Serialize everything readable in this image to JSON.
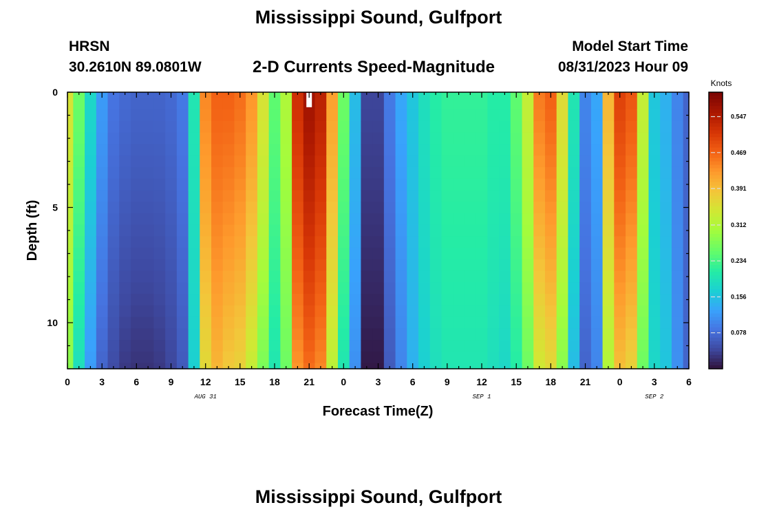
{
  "header": {
    "title": "Mississippi Sound, Gulfport",
    "station_id": "HRSN",
    "station_coords": "30.2610N  89.0801W",
    "subtitle": "2-D Currents Speed-Magnitude",
    "model_label": "Model Start Time",
    "model_time": "08/31/2023 Hour 09"
  },
  "footer": {
    "title": "Mississippi Sound, Gulfport"
  },
  "chart_data": {
    "type": "heatmap",
    "xlabel": "Forecast Time(Z)",
    "ylabel": "Depth (ft)",
    "colorbar_label": "Knots",
    "colorbar_ticks": [
      "0.547",
      "0.469",
      "0.391",
      "0.312",
      "0.234",
      "0.156",
      "0.078"
    ],
    "colorbar_tick_values": [
      0.547,
      0.469,
      0.391,
      0.312,
      0.234,
      0.156,
      0.078
    ],
    "vrange": [
      0,
      0.6
    ],
    "xlim": [
      0,
      54
    ],
    "ylim": [
      0,
      12
    ],
    "y_inverted": true,
    "x_tick_values": [
      0,
      3,
      6,
      9,
      12,
      15,
      18,
      21,
      24,
      27,
      30,
      33,
      36,
      39,
      42,
      45,
      48,
      51,
      54
    ],
    "x_tick_labels": [
      "0",
      "3",
      "6",
      "9",
      "12",
      "15",
      "18",
      "21",
      "0",
      "3",
      "6",
      "9",
      "12",
      "15",
      "18",
      "21",
      "0",
      "3",
      "6"
    ],
    "y_tick_values": [
      0,
      5,
      10
    ],
    "y_tick_labels": [
      "0",
      "5",
      "10"
    ],
    "date_labels": [
      {
        "text": "AUG 31",
        "x": 12
      },
      {
        "text": "SEP 1",
        "x": 36
      },
      {
        "text": "SEP 2",
        "x": 51
      }
    ],
    "hours": [
      0,
      1,
      2,
      3,
      4,
      5,
      6,
      7,
      8,
      9,
      10,
      11,
      12,
      13,
      14,
      15,
      16,
      17,
      18,
      19,
      20,
      21,
      22,
      23,
      24,
      25,
      26,
      27,
      28,
      29,
      30,
      31,
      32,
      33,
      34,
      35,
      36,
      37,
      38,
      39,
      40,
      41,
      42,
      43,
      44,
      45,
      46,
      47,
      48,
      49,
      50,
      51,
      52,
      53,
      54
    ],
    "depths": [
      0,
      0.5,
      1,
      1.5,
      2,
      2.5,
      3,
      3.5,
      4,
      4.5,
      5,
      5.5,
      6,
      6.5,
      7,
      7.5,
      8,
      8.5,
      9,
      9.5,
      10,
      10.5,
      11,
      11.5,
      12
    ],
    "surface_speed": [
      0.35,
      0.26,
      0.18,
      0.12,
      0.085,
      0.075,
      0.07,
      0.07,
      0.07,
      0.075,
      0.09,
      0.2,
      0.44,
      0.47,
      0.47,
      0.46,
      0.43,
      0.35,
      0.25,
      0.31,
      0.52,
      0.565,
      0.54,
      0.42,
      0.26,
      0.15,
      0.04,
      0.04,
      0.09,
      0.13,
      0.16,
      0.19,
      0.21,
      0.22,
      0.22,
      0.22,
      0.22,
      0.21,
      0.21,
      0.25,
      0.33,
      0.45,
      0.47,
      0.36,
      0.2,
      0.1,
      0.13,
      0.4,
      0.5,
      0.48,
      0.33,
      0.16,
      0.14,
      0.1,
      0.07
    ],
    "bottom_speed": [
      0.28,
      0.19,
      0.12,
      0.07,
      0.045,
      0.03,
      0.025,
      0.025,
      0.03,
      0.04,
      0.06,
      0.17,
      0.36,
      0.4,
      0.38,
      0.37,
      0.33,
      0.27,
      0.2,
      0.26,
      0.43,
      0.46,
      0.44,
      0.32,
      0.2,
      0.11,
      0.005,
      0.005,
      0.06,
      0.1,
      0.14,
      0.17,
      0.19,
      0.2,
      0.2,
      0.2,
      0.2,
      0.19,
      0.18,
      0.21,
      0.26,
      0.34,
      0.36,
      0.28,
      0.15,
      0.07,
      0.1,
      0.31,
      0.39,
      0.37,
      0.26,
      0.18,
      0.16,
      0.11,
      0.07
    ],
    "gap_marker": {
      "hour": 21,
      "depth_range": [
        0,
        0.5
      ]
    }
  }
}
